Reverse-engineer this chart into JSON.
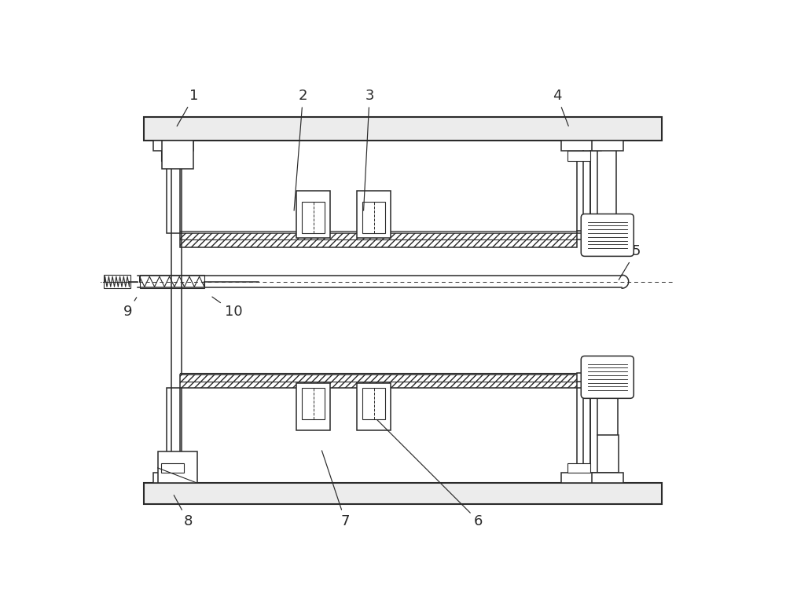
{
  "bg_color": "#ffffff",
  "line_color": "#2a2a2a",
  "fig_width": 10.0,
  "fig_height": 7.82,
  "label_fs": 13,
  "label_data": {
    "1": {
      "tp": [
        1.55,
        7.45
      ],
      "ae": [
        1.25,
        6.92
      ]
    },
    "2": {
      "tp": [
        3.35,
        7.45
      ],
      "ae": [
        3.2,
        5.52
      ]
    },
    "3": {
      "tp": [
        4.45,
        7.45
      ],
      "ae": [
        4.35,
        5.52
      ]
    },
    "4": {
      "tp": [
        7.55,
        7.45
      ],
      "ae": [
        7.75,
        6.92
      ]
    },
    "5": {
      "tp": [
        8.85,
        4.88
      ],
      "ae": [
        8.55,
        4.38
      ]
    },
    "6": {
      "tp": [
        6.25,
        0.42
      ],
      "ae": [
        4.55,
        2.12
      ]
    },
    "7": {
      "tp": [
        4.05,
        0.42
      ],
      "ae": [
        3.65,
        1.62
      ]
    },
    "8": {
      "tp": [
        1.45,
        0.42
      ],
      "ae": [
        1.2,
        0.88
      ]
    },
    "9": {
      "tp": [
        0.45,
        3.88
      ],
      "ae": [
        0.62,
        4.15
      ]
    },
    "10": {
      "tp": [
        2.2,
        3.88
      ],
      "ae": [
        1.82,
        4.15
      ]
    }
  }
}
